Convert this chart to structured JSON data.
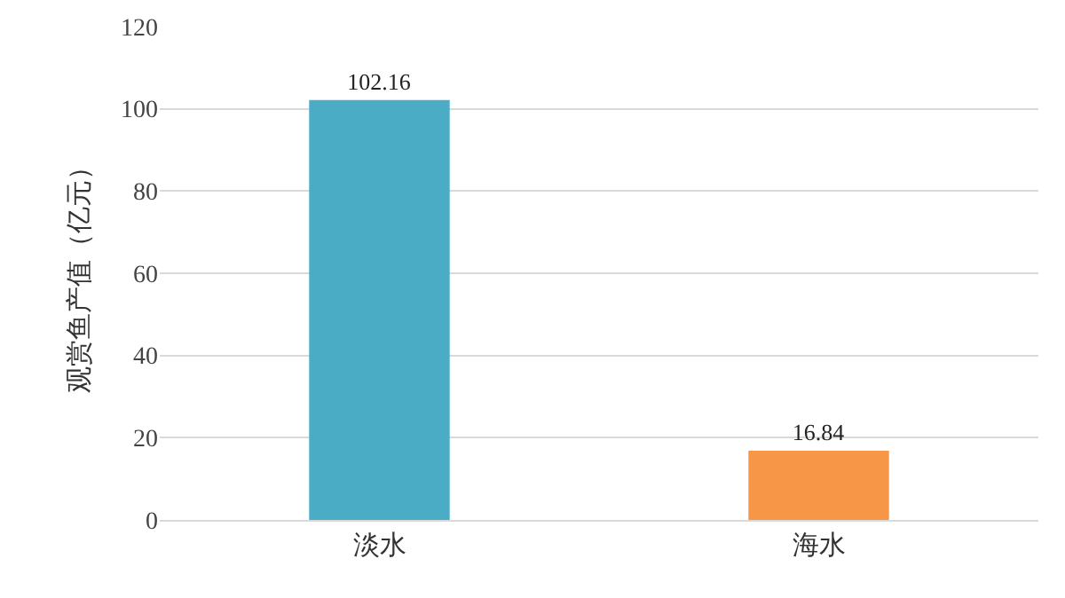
{
  "chart_data": {
    "type": "bar",
    "ylabel": "观赏鱼产值（亿元）",
    "categories": [
      "淡水",
      "海水"
    ],
    "values": [
      102.16,
      16.84
    ],
    "colors": [
      "#4bacc6",
      "#f79646"
    ],
    "ylim": [
      0,
      120
    ],
    "yticks": [
      0,
      20,
      40,
      60,
      80,
      100,
      120
    ],
    "grid": "y",
    "data_labels": true
  }
}
